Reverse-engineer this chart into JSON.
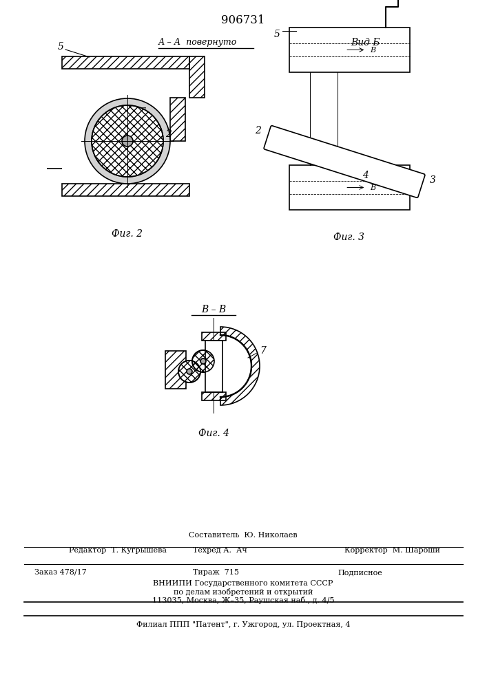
{
  "title": "906731",
  "title_fontsize": 12,
  "bg_color": "#ffffff",
  "line_color": "#000000",
  "hatch_color": "#000000",
  "fig2_label": "А – А повернуто",
  "fig2_caption": "Фиг. 2",
  "fig3_caption": "Вид Б",
  "fig3_fig_caption": "Фиг. 3",
  "fig4_label": "В – В",
  "fig4_caption": "Фиг. 4",
  "footer_line1": "Составитель  Ю. Николаев",
  "footer_line2_left": "Редактор  Т. Кугрышева",
  "footer_line2_mid": "Техред А.  Ач",
  "footer_line2_right": "Корректор  М. Шароши",
  "footer_line3_left": "Заказ 478/17",
  "footer_line3_mid": "Тираж  715",
  "footer_line3_right": "Подписное",
  "footer_line4": "ВНИИПИ Государственного комитета СССР",
  "footer_line5": "по делам изобретений и открытий",
  "footer_line6": "113035, Москва, Ж–35, Раушская наб., д. 4/5",
  "footer_line7": "Филиал ППП \"Патент\", г. Ужгород, ул. Проектная, 4"
}
